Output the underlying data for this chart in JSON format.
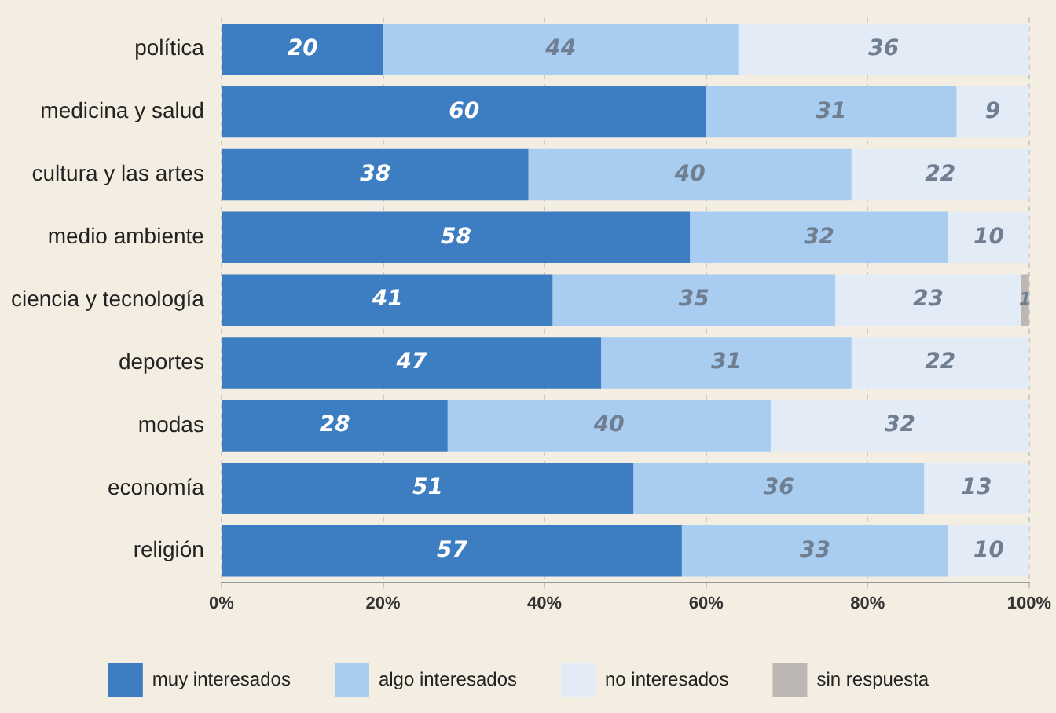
{
  "chart_data": {
    "type": "bar",
    "orientation": "horizontal",
    "stacked": true,
    "categories": [
      "política",
      "medicina y salud",
      "cultura y las artes",
      "medio ambiente",
      "ciencia y tecnología",
      "deportes",
      "modas",
      "economía",
      "religión"
    ],
    "series": [
      {
        "name": "muy interesados",
        "color": "#3d7dc1",
        "values": [
          20,
          60,
          38,
          58,
          41,
          47,
          28,
          51,
          57
        ]
      },
      {
        "name": "algo interesados",
        "color": "#a8cdf0",
        "values": [
          44,
          31,
          40,
          32,
          35,
          31,
          40,
          36,
          33
        ]
      },
      {
        "name": "no interesados",
        "color": "#e3ecf6",
        "values": [
          36,
          9,
          22,
          10,
          23,
          22,
          32,
          13,
          10
        ]
      },
      {
        "name": "sin respuesta",
        "color": "#bcb7b2",
        "values": [
          null,
          null,
          null,
          null,
          1,
          null,
          null,
          null,
          null
        ]
      }
    ],
    "xlim": [
      0,
      100
    ],
    "xticks": [
      {
        "value": 0,
        "label": "0%"
      },
      {
        "value": 20,
        "label": "20%"
      },
      {
        "value": 40,
        "label": "40%"
      },
      {
        "value": 60,
        "label": "60%"
      },
      {
        "value": 80,
        "label": "80%"
      },
      {
        "value": 100,
        "label": "100%"
      }
    ],
    "grid": "x",
    "legend": "bottom",
    "data_labels": true
  }
}
